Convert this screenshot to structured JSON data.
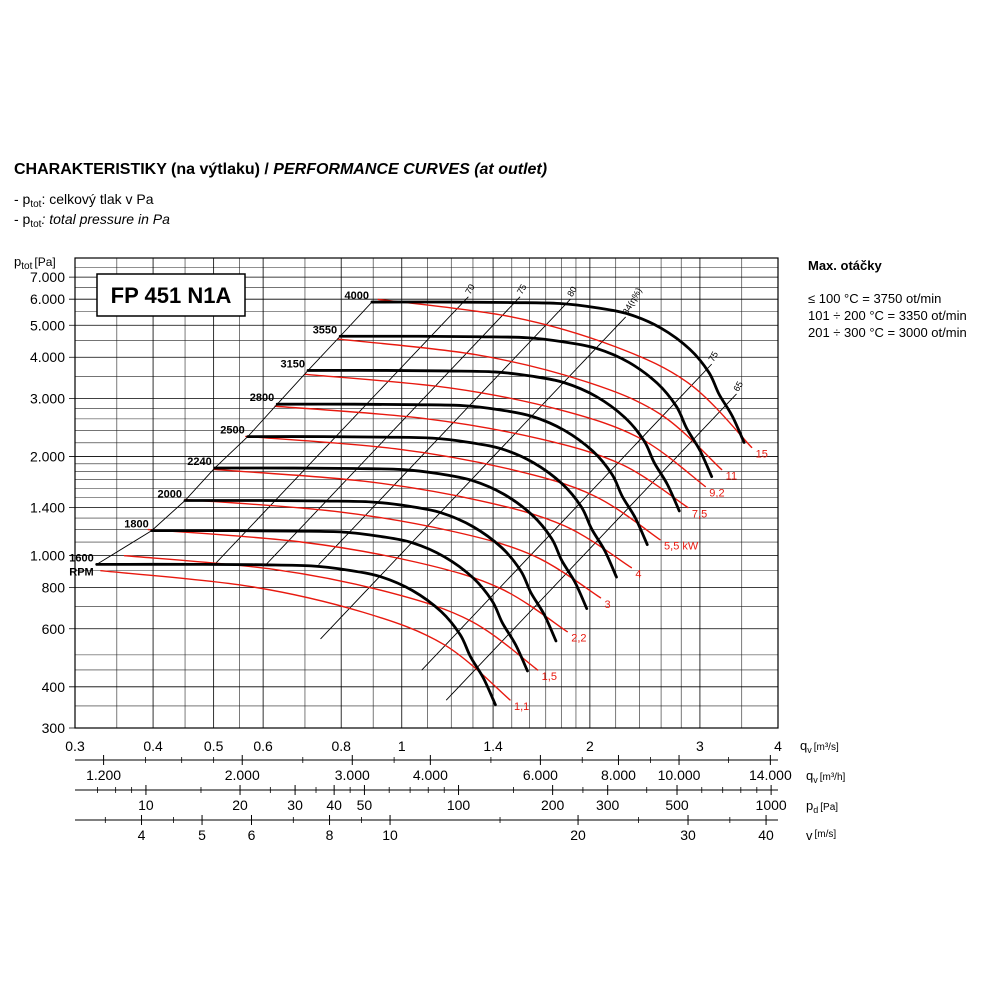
{
  "chart_data": {
    "type": "line",
    "title": [
      "CHARAKTERISTIKY (na výtlaku) / ",
      "PERFORMANCE CURVES (at outlet)"
    ],
    "notes": [
      {
        "prefix": "- p",
        "sub": "tot",
        "text": ": celkový tlak v Pa"
      },
      {
        "prefix": "- p",
        "sub": "tot",
        "text": ": total pressure in Pa"
      }
    ],
    "model": "FP 451 N1A",
    "max_speed": {
      "title": "Max. otáčky",
      "lines": [
        "≤ 100 °C = 3750 ot/min",
        "101 ÷ 200 °C = 3350 ot/min",
        "201 ÷ 300 °C = 3000 ot/min"
      ]
    },
    "x_label": {
      "main": "q",
      "sub": "v",
      "unit": "[m³/s]"
    },
    "y_label": {
      "main": "p",
      "sub": "tot",
      "unit": "[Pa]"
    },
    "x_scale": "log",
    "y_scale": "log",
    "grid": true,
    "xlim": [
      0.3,
      4
    ],
    "ylim": [
      300,
      8000
    ],
    "xticks": [
      0.3,
      0.4,
      0.5,
      0.6,
      0.8,
      1,
      1.4,
      2,
      3,
      4
    ],
    "yticks": [
      300,
      400,
      600,
      800,
      {
        "value": 1000,
        "label": "1.000"
      },
      {
        "value": 1400,
        "label": "1.400"
      },
      {
        "value": 2000,
        "label": "2.000"
      },
      {
        "value": 3000,
        "label": "3.000"
      },
      {
        "value": 4000,
        "label": "4.000"
      },
      {
        "value": 5000,
        "label": "5.000"
      },
      {
        "value": 6000,
        "label": "6.000"
      },
      {
        "value": 7000,
        "label": "7.000"
      }
    ],
    "x_minor_grid": [
      0.35,
      0.45,
      0.55,
      0.7,
      0.9,
      1.1,
      1.2,
      1.3,
      1.5,
      1.6,
      1.7,
      1.8,
      1.9,
      2.2,
      2.4,
      2.6,
      2.8,
      3.5
    ],
    "y_minor_grid": [
      350,
      450,
      500,
      700,
      900,
      1100,
      1200,
      1300,
      1500,
      1600,
      1700,
      1800,
      1900,
      2200,
      2400,
      2600,
      2800,
      3500,
      4500,
      5500,
      6500,
      7500
    ],
    "speed_unit": "RPM",
    "speed_curves": [
      {
        "name": "1600",
        "color": "#000000",
        "x": [
          0.325,
          0.48,
          0.6,
          0.716,
          0.82,
          0.924,
          1.04,
          1.156,
          1.24,
          1.288,
          1.352,
          1.412
        ],
        "values": [
          941,
          941,
          938,
          931,
          904,
          864,
          784,
          677,
          576,
          494,
          424,
          353
        ]
      },
      {
        "name": "1800",
        "color": "#000000",
        "x": [
          0.398,
          0.54,
          0.675,
          0.806,
          0.923,
          1.04,
          1.17,
          1.3,
          1.395,
          1.449,
          1.521,
          1.589
        ],
        "values": [
          1191,
          1191,
          1187,
          1179,
          1144,
          1094,
          992,
          857,
          729,
          625,
          537,
          447
        ]
      },
      {
        "name": "2000",
        "color": "#000000",
        "x": [
          0.45,
          0.6,
          0.75,
          0.895,
          1.025,
          1.155,
          1.3,
          1.445,
          1.55,
          1.61,
          1.69,
          1.765
        ],
        "values": [
          1470,
          1470,
          1465,
          1455,
          1413,
          1350,
          1225,
          1058,
          900,
          771,
          663,
          551
        ]
      },
      {
        "name": "2240",
        "color": "#000000",
        "x": [
          0.502,
          0.672,
          0.84,
          1.002,
          1.148,
          1.294,
          1.456,
          1.618,
          1.736,
          1.803,
          1.893,
          1.977
        ],
        "values": [
          1844,
          1844,
          1838,
          1825,
          1772,
          1693,
          1537,
          1327,
          1129,
          967,
          831,
          691
        ]
      },
      {
        "name": "2500",
        "color": "#000000",
        "x": [
          0.567,
          0.75,
          0.938,
          1.119,
          1.281,
          1.444,
          1.625,
          1.806,
          1.938,
          2.013,
          2.113,
          2.206
        ],
        "values": [
          2297,
          2297,
          2289,
          2273,
          2207,
          2109,
          1914,
          1652,
          1406,
          1205,
          1035,
          861
        ]
      },
      {
        "name": "2800",
        "color": "#000000",
        "x": [
          0.632,
          0.84,
          1.05,
          1.253,
          1.435,
          1.617,
          1.82,
          2.023,
          2.17,
          2.254,
          2.366,
          2.471
        ],
        "values": [
          2881,
          2881,
          2871,
          2852,
          2769,
          2646,
          2401,
          2073,
          1764,
          1512,
          1299,
          1080
        ]
      },
      {
        "name": "3150",
        "color": "#000000",
        "x": [
          0.708,
          0.945,
          1.181,
          1.41,
          1.614,
          1.819,
          2.048,
          2.276,
          2.441,
          2.536,
          2.662,
          2.78
        ],
        "values": [
          3647,
          3647,
          3634,
          3609,
          3504,
          3349,
          3039,
          2623,
          2233,
          1913,
          1643,
          1367
        ]
      },
      {
        "name": "3550",
        "color": "#000000",
        "x": [
          0.797,
          1.065,
          1.331,
          1.589,
          1.819,
          2.05,
          2.308,
          2.565,
          2.751,
          2.858,
          3.0,
          3.133
        ],
        "values": [
          4631,
          4631,
          4616,
          4584,
          4450,
          4253,
          3860,
          3332,
          2836,
          2430,
          2087,
          1737
        ]
      },
      {
        "name": "4000",
        "color": "#000000",
        "x": [
          0.896,
          1.2,
          1.5,
          1.79,
          2.05,
          2.31,
          2.6,
          2.89,
          3.1,
          3.22,
          3.38,
          3.53
        ],
        "values": [
          5880,
          5880,
          5860,
          5820,
          5650,
          5400,
          4900,
          4230,
          3600,
          3085,
          2650,
          2205
        ]
      }
    ],
    "power_curves": [
      {
        "name": "1,1",
        "color": "#e8190f",
        "x": [
          0.33,
          0.568,
          0.866,
          1.171,
          1.49
        ],
        "values": [
          900,
          808,
          674,
          536,
          365
        ]
      },
      {
        "name": "1,5",
        "color": "#e8190f",
        "x": [
          0.36,
          0.623,
          0.954,
          1.293,
          1.65
        ],
        "values": [
          1000,
          909,
          774,
          632,
          450
        ]
      },
      {
        "name": "2,2",
        "color": "#e8190f",
        "x": [
          0.393,
          0.685,
          1.056,
          1.437,
          1.84
        ],
        "values": [
          1200,
          1102,
          955,
          796,
          588
        ]
      },
      {
        "name": "3",
        "color": "#e8190f",
        "x": [
          0.45,
          0.781,
          1.199,
          1.628,
          2.08
        ],
        "values": [
          1480,
          1363,
          1188,
          998,
          745
        ]
      },
      {
        "name": "4",
        "color": "#e8190f",
        "x": [
          0.5,
          0.87,
          1.339,
          1.822,
          2.33
        ],
        "values": [
          1826,
          1682,
          1466,
          1231,
          920
        ]
      },
      {
        "name": "5,5 kW",
        "color": "#e8190f",
        "x": [
          0.563,
          0.975,
          1.495,
          2.03,
          2.59
        ],
        "values": [
          2300,
          2111,
          1827,
          1520,
          1118
        ]
      },
      {
        "name": "7,5",
        "color": "#e8190f",
        "x": [
          0.627,
          1.084,
          1.66,
          2.25,
          2.87
        ],
        "values": [
          2840,
          2608,
          2264,
          1890,
          1400
        ]
      },
      {
        "name": "9,2",
        "color": "#e8190f",
        "x": [
          0.7,
          1.19,
          1.8,
          2.415,
          3.06
        ],
        "values": [
          3550,
          3230,
          2763,
          2262,
          1621
        ]
      },
      {
        "name": "11",
        "color": "#e8190f",
        "x": [
          0.79,
          1.315,
          1.953,
          2.592,
          3.25
        ],
        "values": [
          4540,
          4070,
          3391,
          2688,
          1825
        ]
      },
      {
        "name": "15",
        "color": "#e8190f",
        "x": [
          0.917,
          1.5,
          2.2,
          2.9,
          3.63
        ],
        "values": [
          5990,
          5300,
          4300,
          3300,
          2130
        ]
      }
    ],
    "efficiency_lines": [
      {
        "name": "70",
        "color": "#000000",
        "x": [
          0.502,
          1.277
        ],
        "values": [
          941,
          6090
        ]
      },
      {
        "name": "75",
        "color": "#000000",
        "x": [
          0.607,
          1.545
        ],
        "values": [
          941,
          6090
        ]
      },
      {
        "name": "80",
        "color": "#000000",
        "x": [
          0.737,
          1.86
        ],
        "values": [
          941,
          5990
        ]
      },
      {
        "name": "84(η%)",
        "color": "#000000",
        "x": [
          0.742,
          2.28
        ],
        "values": [
          560,
          5290
        ]
      },
      {
        "name": "75",
        "color": "#000000",
        "x": [
          1.077,
          3.13
        ],
        "values": [
          450,
          3805
        ]
      },
      {
        "name": "65",
        "color": "#000000",
        "x": [
          1.179,
          3.43
        ],
        "values": [
          365,
          3090
        ]
      }
    ],
    "secondary_x_axes": [
      {
        "label": {
          "main": "q",
          "sub": "v",
          "unit": "[m³/h]"
        },
        "xlim": [
          1080,
          14400
        ],
        "xticks": [
          {
            "value": 1200,
            "label": "1.200"
          },
          {
            "value": 2000,
            "label": "2.000"
          },
          {
            "value": 3000,
            "label": "3.000"
          },
          {
            "value": 4000,
            "label": "4.000"
          },
          {
            "value": 6000,
            "label": "6.000"
          },
          {
            "value": 8000,
            "label": "8.000"
          },
          {
            "value": 10000,
            "label": "10.000"
          },
          {
            "value": 14000,
            "label": "14.000"
          }
        ],
        "minor_ticks": [
          1400,
          1600,
          1800,
          2500,
          3500,
          5000,
          7000,
          9000,
          12000
        ]
      },
      {
        "label": {
          "main": "p",
          "sub": "d",
          "unit": "[Pa]"
        },
        "xlim": [
          5.93,
          1052
        ],
        "xticks": [
          10,
          20,
          30,
          40,
          50,
          100,
          200,
          300,
          500,
          1000
        ],
        "minor_ticks": [
          7,
          8,
          9,
          15,
          25,
          35,
          45,
          60,
          70,
          80,
          90,
          150,
          250,
          400,
          600,
          700,
          800,
          900
        ]
      },
      {
        "label": {
          "main": "v",
          "sub": "",
          "unit": "[m/s]"
        },
        "xlim": [
          3.13,
          41.8
        ],
        "xticks": [
          4,
          5,
          6,
          8,
          10,
          20,
          30,
          40
        ],
        "minor_ticks": [
          3.5,
          4.5,
          7,
          9,
          15,
          25,
          35
        ]
      }
    ]
  }
}
